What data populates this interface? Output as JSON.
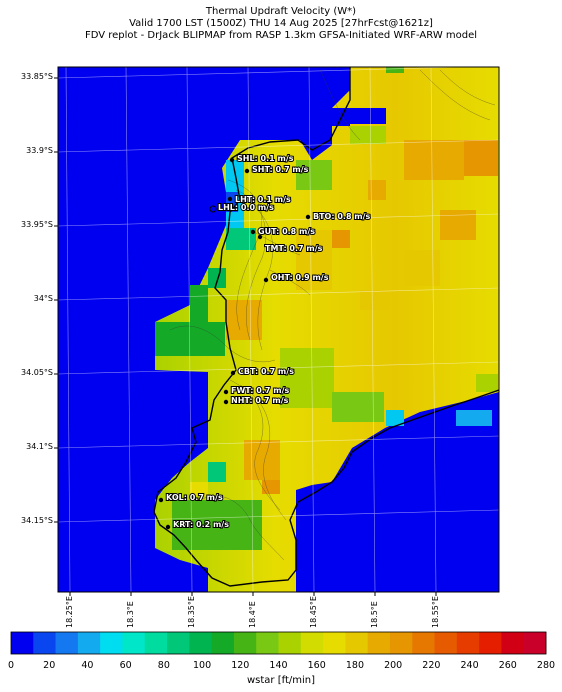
{
  "title": {
    "line1": "Thermal Updraft Velocity (W*)",
    "line2": "Valid 1700 LST (1500Z) THU 14 Aug 2025 [27hrFcst@1621z]",
    "line3": "FDV replot - DrJack BLIPMAP from RASP 1.3km GFSA-Initiated WRF-ARW model"
  },
  "axes": {
    "lat_ticks": [
      "33.85°S",
      "33.9°S",
      "33.95°S",
      "34°S",
      "34.05°S",
      "34.1°S",
      "34.15°S"
    ],
    "lon_ticks": [
      "18.25°E",
      "18.3°E",
      "18.35°E",
      "18.4°E",
      "18.45°E",
      "18.5°E",
      "18.55°E"
    ]
  },
  "stations": [
    {
      "label": "SHL: 0.1 m/s"
    },
    {
      "label": "SHT: 0.7 m/s"
    },
    {
      "label": "LHT: 0.1 m/s"
    },
    {
      "label": "LHL: 0.0 m/s"
    },
    {
      "label": "BTO: 0.8 m/s"
    },
    {
      "label": "GUT: 0.8 m/s"
    },
    {
      "label": "TMT: 0.7 m/s"
    },
    {
      "label": "OHT: 0.9 m/s"
    },
    {
      "label": "CBT: 0.7 m/s"
    },
    {
      "label": "FWT: 0.7 m/s"
    },
    {
      "label": "NHT: 0.7 m/s"
    },
    {
      "label": "KOL: 0.7 m/s"
    },
    {
      "label": "KRT: 0.2 m/s"
    }
  ],
  "colorbar": {
    "label": "wstar [ft/min]",
    "ticks": [
      "0",
      "20",
      "40",
      "60",
      "80",
      "100",
      "120",
      "140",
      "160",
      "180",
      "200",
      "220",
      "240",
      "260",
      "280"
    ],
    "colors": [
      "#0000f0",
      "#0a46f0",
      "#1478f0",
      "#14aaf0",
      "#00dcf0",
      "#00e6c8",
      "#00dca0",
      "#00c878",
      "#00b450",
      "#14aa28",
      "#46b414",
      "#78c814",
      "#aad200",
      "#d2dc00",
      "#e6dc00",
      "#e6c800",
      "#e6aa00",
      "#e69600",
      "#e67800",
      "#e65a00",
      "#e63c00",
      "#e61e00",
      "#d20014",
      "#c8002a"
    ]
  }
}
